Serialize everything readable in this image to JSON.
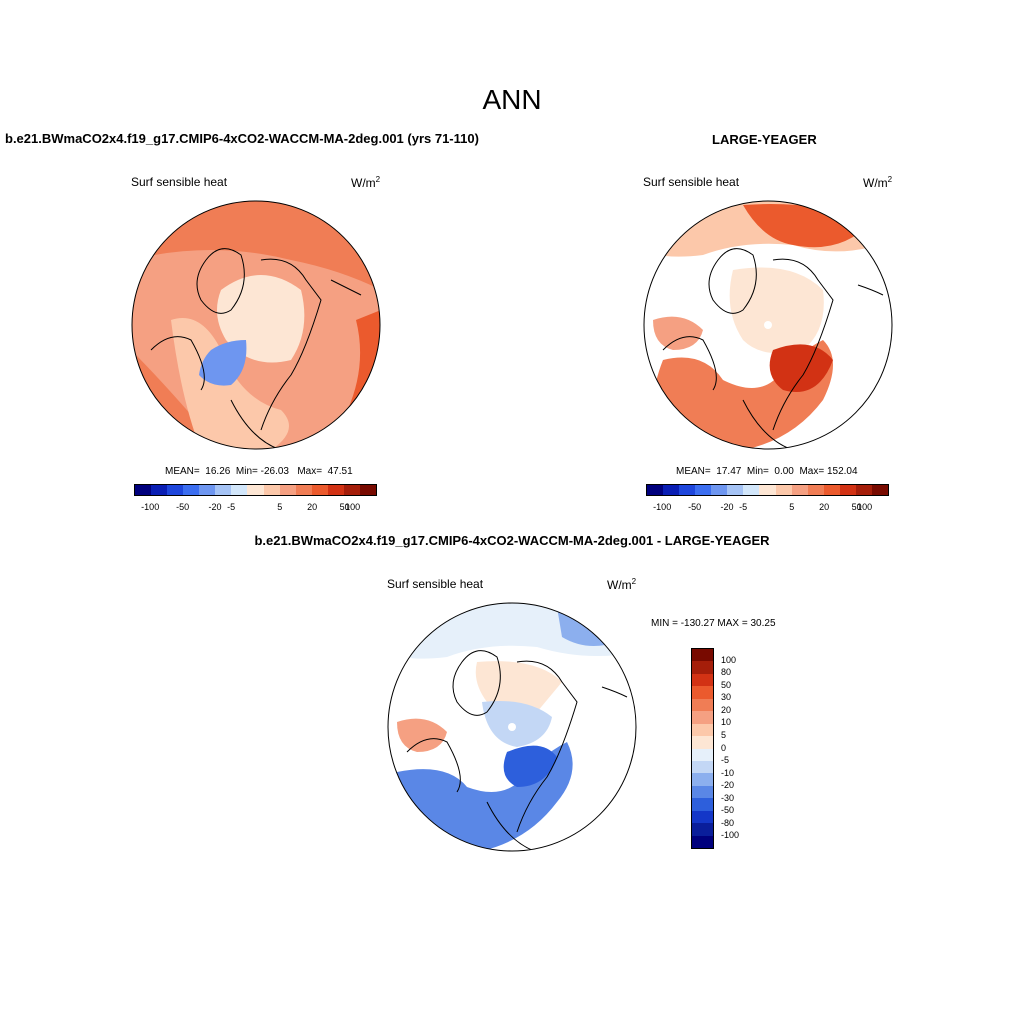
{
  "main_title": "ANN",
  "panels": [
    {
      "title": "b.e21.BWmaCO2x4.f19_g17.CMIP6-4xCO2-WACCM-MA-2deg.001 (yrs 71-110)",
      "variable": "Surf sensible heat",
      "units": "W/m",
      "units_exp": "2",
      "stats": {
        "mean_label": "MEAN=",
        "mean": "16.26",
        "min_label": "Min=",
        "min": "-26.03",
        "max_label": "Max=",
        "max": "47.51"
      },
      "colorbar_ticks": [
        "-100",
        "-50",
        "-20",
        "-5",
        "5",
        "20",
        "50",
        "100"
      ]
    },
    {
      "title": "LARGE-YEAGER",
      "variable": "Surf sensible heat",
      "units": "W/m",
      "units_exp": "2",
      "stats": {
        "mean_label": "MEAN=",
        "mean": "17.47",
        "min_label": "Min=",
        "min": "0.00",
        "max_label": "Max=",
        "max": "152.04"
      },
      "colorbar_ticks": [
        "-100",
        "-50",
        "-20",
        "-5",
        "5",
        "20",
        "50",
        "100"
      ]
    },
    {
      "title": "b.e21.BWmaCO2x4.f19_g17.CMIP6-4xCO2-WACCM-MA-2deg.001 - LARGE-YEAGER",
      "variable": "Surf sensible heat",
      "units": "W/m",
      "units_exp": "2",
      "minmax": "MIN = -130.27 MAX =  30.25",
      "colorbar_ticks": [
        "100",
        "80",
        "50",
        "30",
        "20",
        "10",
        "5",
        "0",
        "-5",
        "-10",
        "-20",
        "-30",
        "-50",
        "-80",
        "-100"
      ]
    }
  ],
  "colors": {
    "abs_scale": [
      "#00007d",
      "#0a1eb4",
      "#1e46dc",
      "#3c6ef0",
      "#6e96f0",
      "#a5c3f5",
      "#d2e6fa",
      "#fde6d4",
      "#fcc8aa",
      "#f5a082",
      "#f07d55",
      "#eb5a2d",
      "#d23214",
      "#a51e0a",
      "#780a00"
    ],
    "diff_scale": [
      "#780a00",
      "#a51e0a",
      "#d23214",
      "#eb5a2d",
      "#f07d55",
      "#f5a082",
      "#fcc8aa",
      "#fde6d4",
      "#e6f0fa",
      "#c3d7f5",
      "#8cafee",
      "#5a87e6",
      "#2d5fdc",
      "#1437c8",
      "#0a1e9b",
      "#00007d"
    ]
  }
}
